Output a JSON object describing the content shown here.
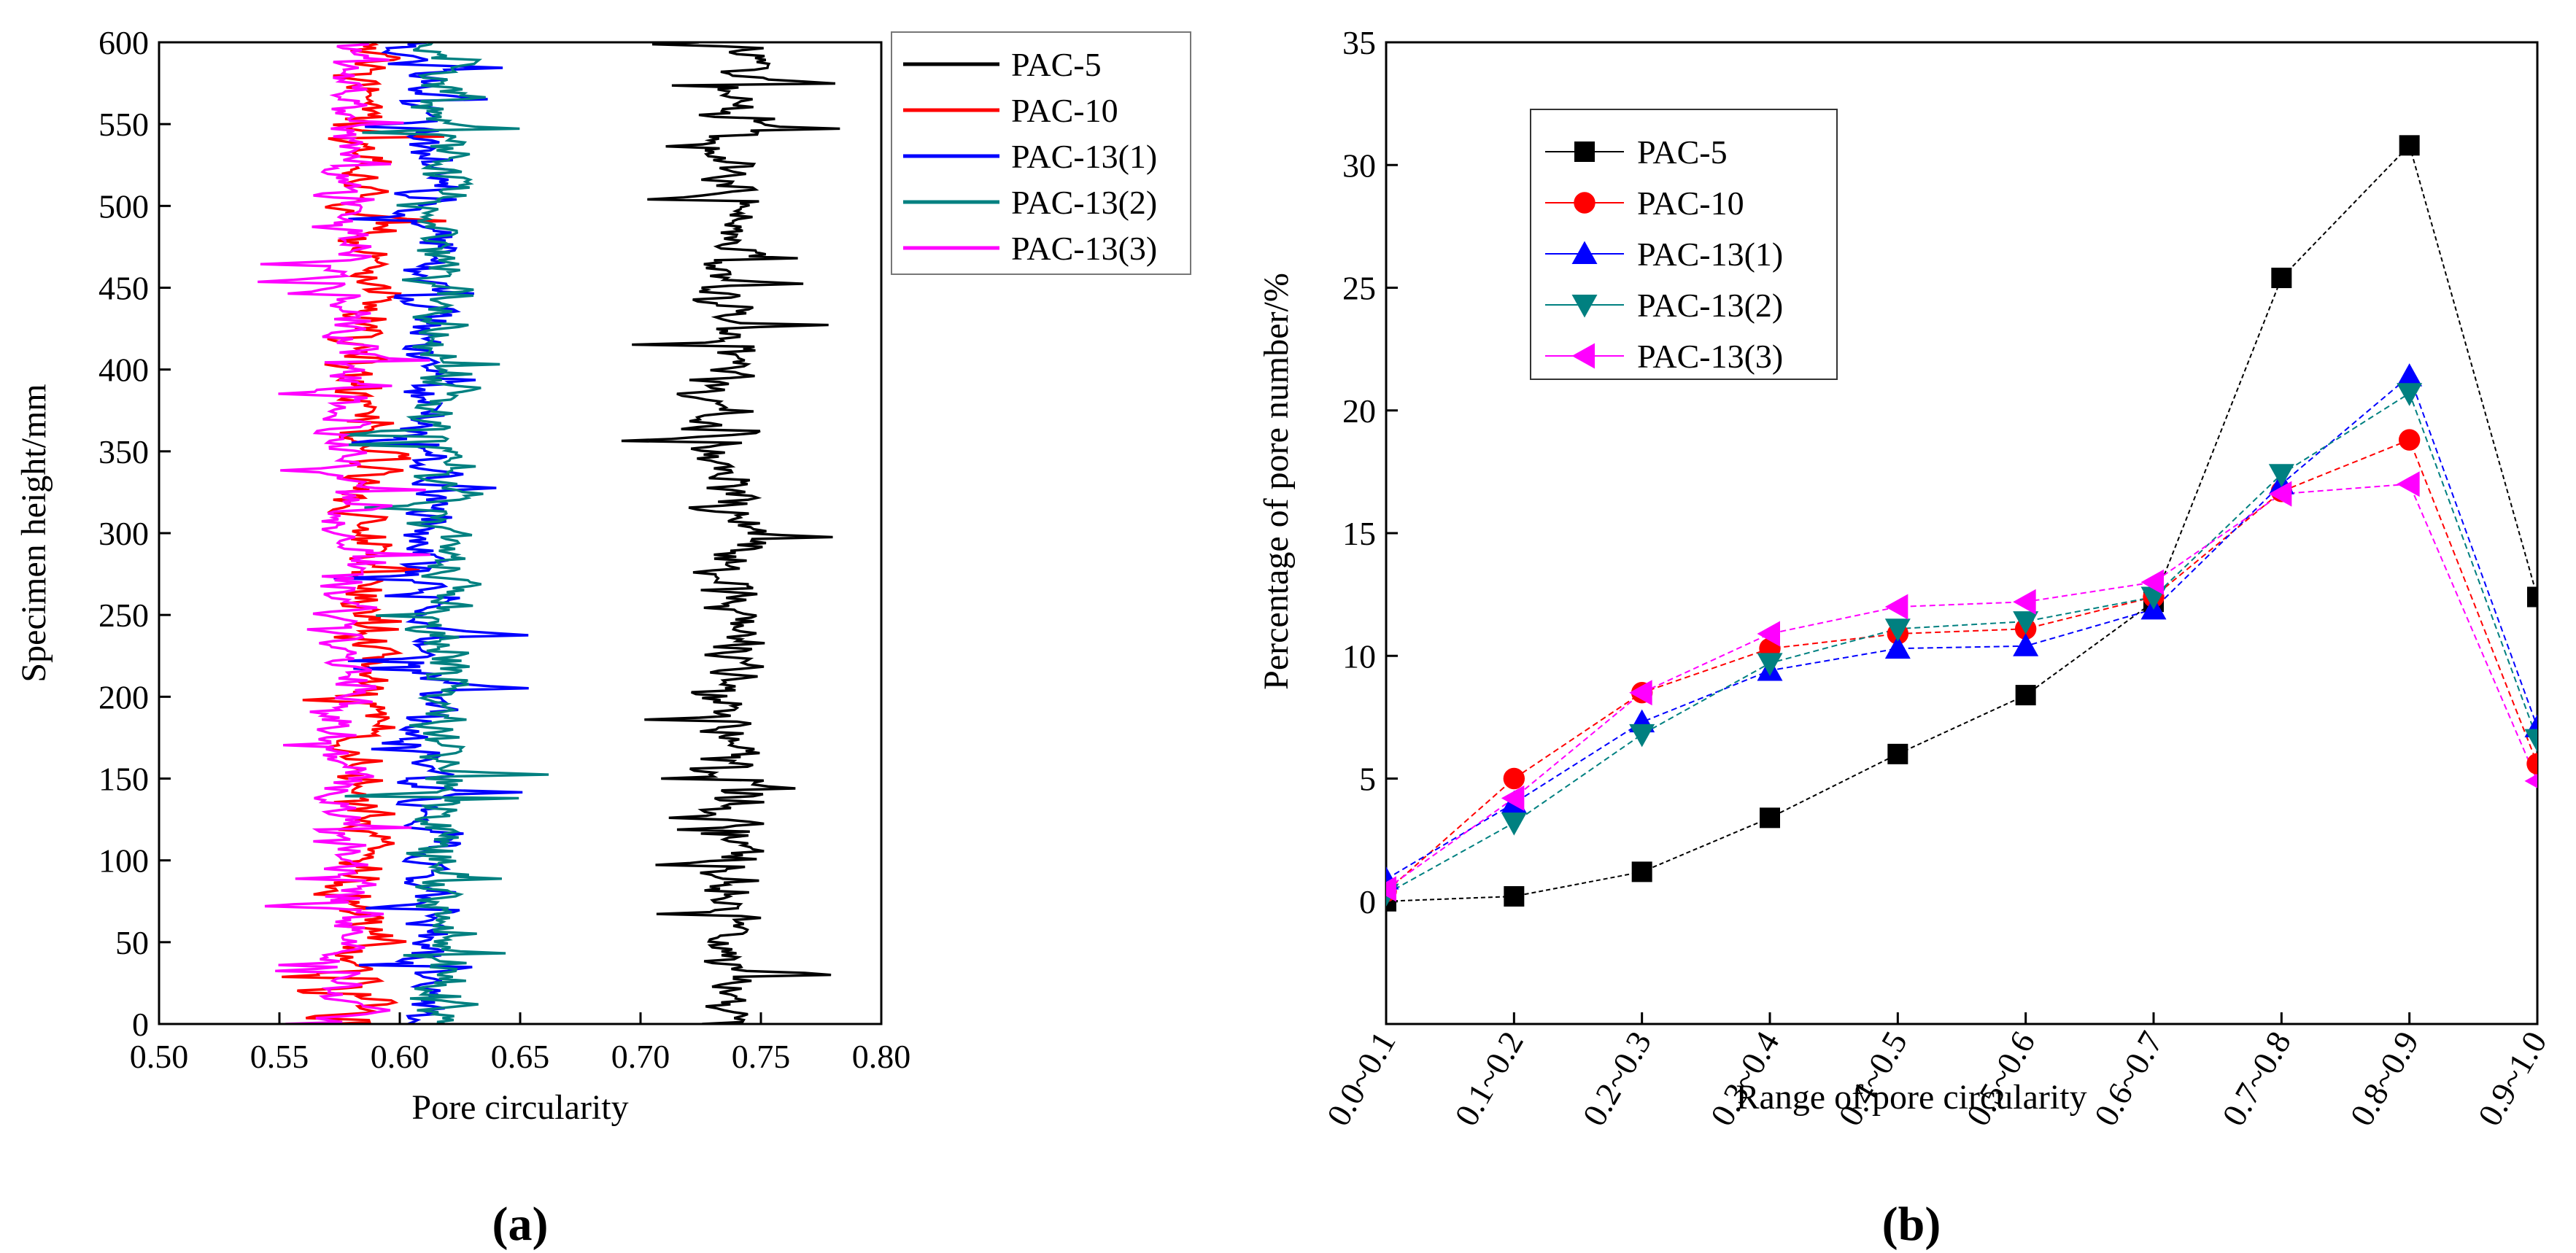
{
  "chart_data": [
    {
      "panel": "a",
      "panel_label": "(a)",
      "type": "line",
      "orientation": "vertical-profile",
      "xlabel": "Pore circularity",
      "ylabel": "Specimen height/mm",
      "xlim": [
        0.5,
        0.8
      ],
      "ylim": [
        0,
        600
      ],
      "xticks": [
        "0.50",
        "0.55",
        "0.60",
        "0.65",
        "0.70",
        "0.75",
        "0.80"
      ],
      "yticks": [
        "0",
        "50",
        "100",
        "150",
        "200",
        "250",
        "300",
        "350",
        "400",
        "450",
        "500",
        "550",
        "600"
      ],
      "legend_position": "right-outside-top",
      "series": [
        {
          "name": "PAC-5",
          "color": "#000000",
          "mean": 0.738,
          "spread": 0.014,
          "lo": 0.69,
          "hi": 0.785,
          "start": 0.705
        },
        {
          "name": "PAC-10",
          "color": "#ff0000",
          "mean": 0.585,
          "spread": 0.012,
          "lo": 0.545,
          "hi": 0.62,
          "start": 0.56
        },
        {
          "name": "PAC-13(1)",
          "color": "#0000ff",
          "mean": 0.612,
          "spread": 0.012,
          "lo": 0.57,
          "hi": 0.655,
          "start": 0.6
        },
        {
          "name": "PAC-13(2)",
          "color": "#008080",
          "mean": 0.618,
          "spread": 0.013,
          "lo": 0.575,
          "hi": 0.668,
          "start": 0.6
        },
        {
          "name": "PAC-13(3)",
          "color": "#ff00ff",
          "mean": 0.578,
          "spread": 0.012,
          "lo": 0.535,
          "hi": 0.615,
          "start": 0.54
        }
      ]
    },
    {
      "panel": "b",
      "panel_label": "(b)",
      "type": "line",
      "xlabel": "Range of pore circularity",
      "ylabel": "Percentage of pore number/%",
      "categories": [
        "0.0~0.1",
        "0.1~0.2",
        "0.2~0.3",
        "0.3~0.4",
        "0.4~0.5",
        "0.5~0.6",
        "0.6~0.7",
        "0.7~0.8",
        "0.8~0.9",
        "0.9~1.0"
      ],
      "ylim": [
        -5,
        35
      ],
      "yticks": [
        "0",
        "5",
        "10",
        "15",
        "20",
        "25",
        "30",
        "35"
      ],
      "legend_position": "top-left-inside",
      "series": [
        {
          "name": "PAC-5",
          "color": "#000000",
          "marker": "square",
          "values": [
            0,
            0.2,
            1.2,
            3.4,
            6.0,
            8.4,
            12.2,
            25.4,
            30.8,
            12.4
          ]
        },
        {
          "name": "PAC-10",
          "color": "#ff0000",
          "marker": "circle",
          "values": [
            0.4,
            5.0,
            8.5,
            10.3,
            10.9,
            11.1,
            12.4,
            16.7,
            18.8,
            5.6
          ]
        },
        {
          "name": "PAC-13(1)",
          "color": "#0000ff",
          "marker": "triangle-up",
          "values": [
            0.9,
            4.0,
            7.3,
            9.4,
            10.3,
            10.4,
            11.9,
            17.0,
            21.4,
            7.1
          ]
        },
        {
          "name": "PAC-13(2)",
          "color": "#008080",
          "marker": "triangle-down",
          "values": [
            0.3,
            3.2,
            6.8,
            9.7,
            11.1,
            11.4,
            12.4,
            17.4,
            20.7,
            6.6
          ]
        },
        {
          "name": "PAC-13(3)",
          "color": "#ff00ff",
          "marker": "triangle-left",
          "values": [
            0.5,
            4.2,
            8.5,
            10.9,
            12.0,
            12.2,
            13.0,
            16.6,
            17.0,
            4.9
          ]
        }
      ]
    }
  ]
}
